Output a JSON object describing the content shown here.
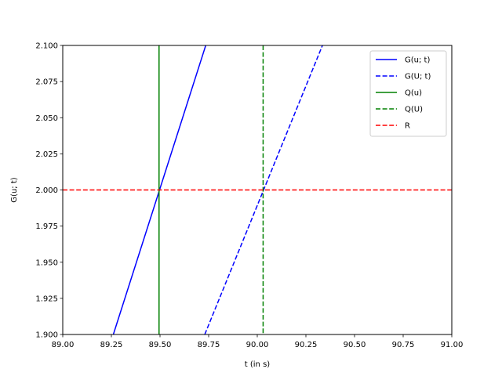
{
  "chart_data": {
    "type": "line",
    "title": "",
    "xlabel": "t (in s)",
    "ylabel": "G(u; t)",
    "xlim": [
      89.0,
      91.0
    ],
    "ylim": [
      1.9,
      2.1
    ],
    "xticks": [
      89.0,
      89.25,
      89.5,
      89.75,
      90.0,
      90.25,
      90.5,
      90.75,
      91.0
    ],
    "xtick_labels": [
      "89.00",
      "89.25",
      "89.50",
      "89.75",
      "90.00",
      "90.25",
      "90.50",
      "90.75",
      "91.00"
    ],
    "yticks": [
      1.9,
      1.925,
      1.95,
      1.975,
      2.0,
      2.025,
      2.05,
      2.075,
      2.1
    ],
    "ytick_labels": [
      "1.900",
      "1.925",
      "1.950",
      "1.975",
      "2.000",
      "2.025",
      "2.050",
      "2.075",
      "2.100"
    ],
    "grid": false,
    "legend_position": "top-right",
    "series": [
      {
        "name": "G(u; t)",
        "kind": "line",
        "color": "#0000ff",
        "dash": "solid",
        "x": [
          89.26,
          89.735
        ],
        "y": [
          1.9,
          2.1
        ]
      },
      {
        "name": "G(U; t)",
        "kind": "line",
        "color": "#0000ff",
        "dash": "dashed",
        "x": [
          89.73,
          90.335
        ],
        "y": [
          1.9,
          2.1
        ]
      },
      {
        "name": "Q(u)",
        "kind": "vline",
        "color": "#008000",
        "dash": "solid",
        "x": 89.495
      },
      {
        "name": "Q(U)",
        "kind": "vline",
        "color": "#008000",
        "dash": "dashed",
        "x": 90.03
      },
      {
        "name": "R",
        "kind": "hline",
        "color": "#ff0000",
        "dash": "dashed",
        "y": 2.0
      }
    ]
  }
}
